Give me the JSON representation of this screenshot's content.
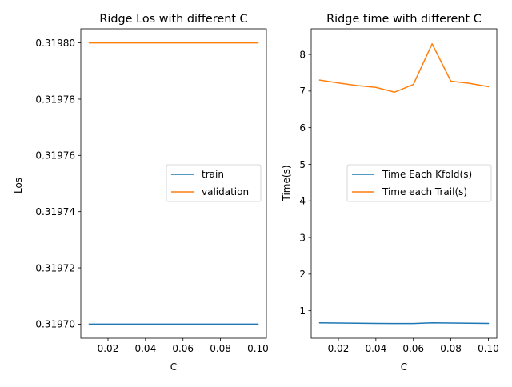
{
  "colors": {
    "train": "#1f77b4",
    "validation": "#ff7f0e"
  },
  "chart_data": [
    {
      "type": "line",
      "title": "Ridge Los with different C",
      "xlabel": "C",
      "ylabel": "Los",
      "x": [
        0.01,
        0.02,
        0.03,
        0.04,
        0.05,
        0.06,
        0.07,
        0.08,
        0.09,
        0.1
      ],
      "xlim": [
        0.0055,
        0.1045
      ],
      "ylim": [
        0.319695,
        0.319805
      ],
      "xticks": [
        0.02,
        0.04,
        0.06,
        0.08,
        0.1
      ],
      "xtick_labels": [
        "0.02",
        "0.04",
        "0.06",
        "0.08",
        "0.10"
      ],
      "yticks": [
        0.3197,
        0.31972,
        0.31974,
        0.31976,
        0.31978,
        0.3198
      ],
      "ytick_labels": [
        "0.31970",
        "0.31972",
        "0.31974",
        "0.31976",
        "0.31978",
        "0.31980"
      ],
      "legend_position": "center-right",
      "grid": false,
      "series": [
        {
          "name": "train",
          "color": "#1f77b4",
          "values": [
            0.3197,
            0.3197,
            0.3197,
            0.3197,
            0.3197,
            0.3197,
            0.3197,
            0.3197,
            0.3197,
            0.3197
          ]
        },
        {
          "name": "validation",
          "color": "#ff7f0e",
          "values": [
            0.3198,
            0.3198,
            0.3198,
            0.3198,
            0.3198,
            0.3198,
            0.3198,
            0.3198,
            0.3198,
            0.3198
          ]
        }
      ]
    },
    {
      "type": "line",
      "title": "Ridge time with different C",
      "xlabel": "C",
      "ylabel": "Time(s)",
      "x": [
        0.01,
        0.02,
        0.03,
        0.04,
        0.05,
        0.06,
        0.07,
        0.08,
        0.09,
        0.1
      ],
      "xlim": [
        0.0055,
        0.1045
      ],
      "ylim": [
        0.25,
        8.7
      ],
      "xticks": [
        0.02,
        0.04,
        0.06,
        0.08,
        0.1
      ],
      "xtick_labels": [
        "0.02",
        "0.04",
        "0.06",
        "0.08",
        "0.10"
      ],
      "yticks": [
        1,
        2,
        3,
        4,
        5,
        6,
        7,
        8
      ],
      "ytick_labels": [
        "1",
        "2",
        "3",
        "4",
        "5",
        "6",
        "7",
        "8"
      ],
      "legend_position": "center-right",
      "grid": false,
      "series": [
        {
          "name": "Time Each Kfold(s)",
          "color": "#1f77b4",
          "values": [
            0.67,
            0.665,
            0.66,
            0.655,
            0.65,
            0.65,
            0.67,
            0.665,
            0.66,
            0.655
          ]
        },
        {
          "name": "Time each Trail(s)",
          "color": "#ff7f0e",
          "values": [
            7.3,
            7.22,
            7.15,
            7.1,
            6.97,
            7.18,
            8.29,
            7.27,
            7.21,
            7.12
          ]
        }
      ]
    }
  ]
}
